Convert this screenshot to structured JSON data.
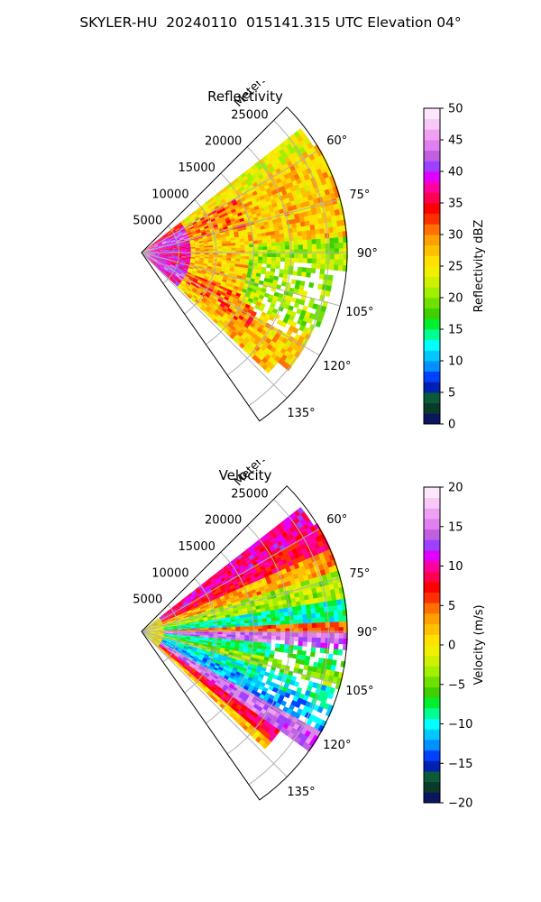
{
  "title": "SKYLER-HU  20240110  015141.315 UTC Elevation 04°",
  "colors": {
    "ring": "#000000",
    "grid": "#b0b0b0",
    "background": "#ffffff"
  },
  "chart_data": [
    {
      "type": "heatmap",
      "title": "Reflectivity",
      "radial_axis_label": "Meters",
      "radial_ticks": [
        5000,
        10000,
        15000,
        20000,
        25000
      ],
      "radial_tick_labels": [
        "5000",
        "10000",
        "15000",
        "20000",
        "25000"
      ],
      "radial_range": [
        0,
        27500
      ],
      "azimuth_ticks": [
        60,
        75,
        90,
        105,
        120,
        135
      ],
      "azimuth_tick_labels": [
        "60°",
        "75°",
        "90°",
        "105°",
        "120°",
        "135°"
      ],
      "azimuth_range": [
        45,
        145
      ],
      "grid": true,
      "colorbar": {
        "label": "Reflectivity dBZ",
        "range": [
          0,
          50
        ],
        "ticks": [
          0,
          5,
          10,
          15,
          20,
          25,
          30,
          35,
          40,
          45,
          50
        ],
        "tick_labels": [
          "0",
          "5",
          "10",
          "15",
          "20",
          "25",
          "30",
          "35",
          "40",
          "45",
          "50"
        ],
        "colormap": [
          "#0a1660",
          "#0a3a2a",
          "#0b5a3a",
          "#0020b0",
          "#0040ff",
          "#0090ff",
          "#00c8ff",
          "#00ffff",
          "#00ff90",
          "#00f030",
          "#40d000",
          "#70e000",
          "#a0f000",
          "#d0f000",
          "#f0f000",
          "#ffe000",
          "#ffc000",
          "#ffa000",
          "#ff7000",
          "#ff3000",
          "#ff0000",
          "#ff0050",
          "#ff00a0",
          "#e000ff",
          "#a040ff",
          "#c060e0",
          "#e080f0",
          "#f0a0f0",
          "#f8c8f8",
          "#fce8fc"
        ]
      },
      "data_pattern": {
        "description_values": "dBZ mostly 20-35 across sector, 35-45 near radar (r < 6000 m) and in bands along 60-75° and 115-125°",
        "coverage": [
          {
            "azimuth": [
              52,
              58
            ],
            "r_max": 26500
          },
          {
            "azimuth": [
              58,
              70
            ],
            "r_max": 27000
          },
          {
            "azimuth": [
              70,
              95
            ],
            "r_max": 27000
          },
          {
            "azimuth": [
              95,
              112
            ],
            "r_max": 25500
          },
          {
            "azimuth": [
              112,
              128
            ],
            "r_max": 25000
          },
          {
            "azimuth": [
              128,
              133
            ],
            "r_max": 23000
          }
        ]
      }
    },
    {
      "type": "heatmap",
      "title": "Velocity",
      "radial_axis_label": "Meters",
      "radial_ticks": [
        5000,
        10000,
        15000,
        20000,
        25000
      ],
      "radial_tick_labels": [
        "5000",
        "10000",
        "15000",
        "20000",
        "25000"
      ],
      "radial_range": [
        0,
        27500
      ],
      "azimuth_ticks": [
        60,
        75,
        90,
        105,
        120,
        135
      ],
      "azimuth_tick_labels": [
        "60°",
        "75°",
        "90°",
        "105°",
        "120°",
        "135°"
      ],
      "azimuth_range": [
        45,
        145
      ],
      "grid": true,
      "colorbar": {
        "label": "Velocity (m/s)",
        "range": [
          -20,
          20
        ],
        "ticks": [
          -20,
          -15,
          -10,
          -5,
          0,
          5,
          10,
          15,
          20
        ],
        "tick_labels": [
          "−20",
          "−15",
          "−10",
          "−5",
          "0",
          "5",
          "10",
          "15",
          "20"
        ],
        "colormap": [
          "#0a1660",
          "#0a3a2a",
          "#0b5a3a",
          "#0020b0",
          "#0040ff",
          "#0090ff",
          "#00c8ff",
          "#00ffff",
          "#00ff90",
          "#00f030",
          "#40d000",
          "#70e000",
          "#a0f000",
          "#d0f000",
          "#f0f000",
          "#ffe000",
          "#ffc000",
          "#ffa000",
          "#ff7000",
          "#ff3000",
          "#ff0000",
          "#ff0050",
          "#ff00a0",
          "#e000ff",
          "#a040ff",
          "#c060e0",
          "#e080f0",
          "#f0a0f0",
          "#f8c8f8",
          "#fce8fc"
        ]
      },
      "data_pattern": {
        "bands": [
          {
            "azimuth": [
              52,
              60
            ],
            "velocity": 10
          },
          {
            "azimuth": [
              60,
              66
            ],
            "velocity": 8
          },
          {
            "azimuth": [
              66,
              72
            ],
            "velocity": 3
          },
          {
            "azimuth": [
              72,
              80
            ],
            "velocity": -3
          },
          {
            "azimuth": [
              80,
              86
            ],
            "velocity": -9
          },
          {
            "azimuth": [
              86,
              90
            ],
            "velocity": 5
          },
          {
            "azimuth": [
              90,
              94
            ],
            "velocity": 14
          },
          {
            "azimuth": [
              94,
              100
            ],
            "velocity": -8
          },
          {
            "azimuth": [
              100,
              106
            ],
            "velocity": -4
          },
          {
            "azimuth": [
              106,
              112
            ],
            "velocity": -10
          },
          {
            "azimuth": [
              112,
              118
            ],
            "velocity": -12
          },
          {
            "azimuth": [
              118,
              124
            ],
            "velocity": 14
          },
          {
            "azimuth": [
              124,
              130
            ],
            "velocity": 8
          },
          {
            "azimuth": [
              130,
              133
            ],
            "velocity": 2
          }
        ]
      }
    }
  ]
}
